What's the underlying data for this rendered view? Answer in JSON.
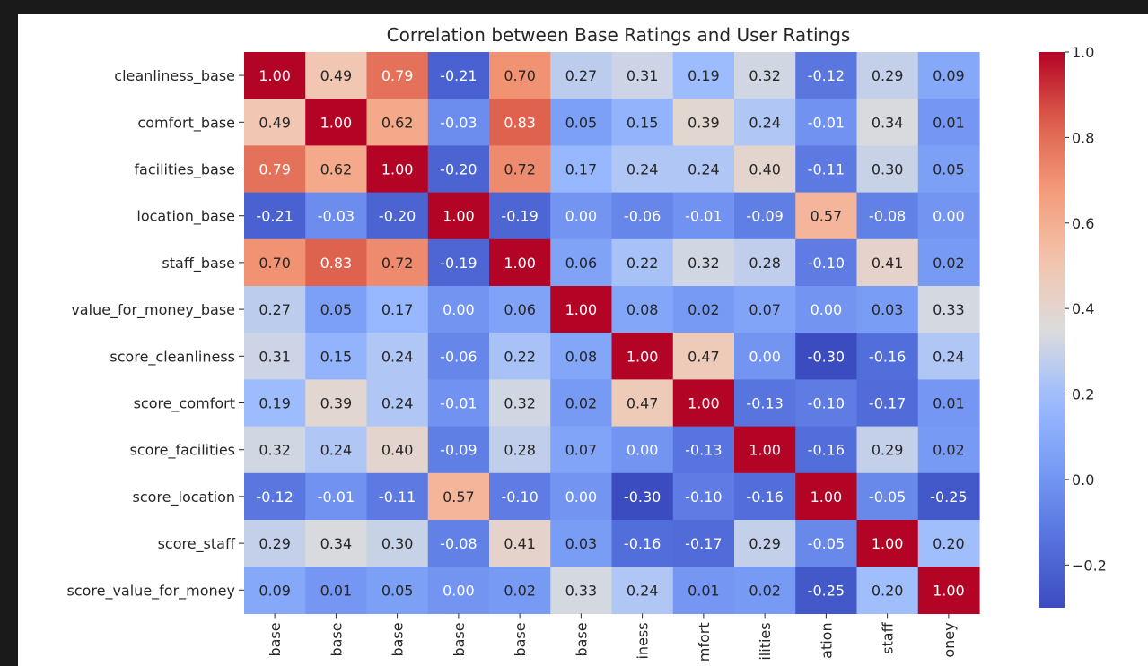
{
  "window": {
    "background": "#1a1a1a"
  },
  "chart_data": {
    "type": "heatmap",
    "title": "Correlation between Base Ratings and User Ratings",
    "row_labels": [
      "cleanliness_base",
      "comfort_base",
      "facilities_base",
      "location_base",
      "staff_base",
      "value_for_money_base",
      "score_cleanliness",
      "score_comfort",
      "score_facilities",
      "score_location",
      "score_staff",
      "score_value_for_money"
    ],
    "col_labels_visible": [
      "base",
      "base",
      "base",
      "base",
      "base",
      "base",
      "iness",
      "mfort",
      "ilities",
      "ation",
      "staff",
      "oney"
    ],
    "values": [
      [
        1.0,
        0.49,
        0.79,
        -0.21,
        0.7,
        0.27,
        0.31,
        0.19,
        0.32,
        -0.12,
        0.29,
        0.09
      ],
      [
        0.49,
        1.0,
        0.62,
        -0.03,
        0.83,
        0.05,
        0.15,
        0.39,
        0.24,
        -0.01,
        0.34,
        0.01
      ],
      [
        0.79,
        0.62,
        1.0,
        -0.2,
        0.72,
        0.17,
        0.24,
        0.24,
        0.4,
        -0.11,
        0.3,
        0.05
      ],
      [
        -0.21,
        -0.03,
        -0.2,
        1.0,
        -0.19,
        -0.0,
        -0.06,
        -0.01,
        -0.09,
        0.57,
        -0.08,
        0.0
      ],
      [
        0.7,
        0.83,
        0.72,
        -0.19,
        1.0,
        0.06,
        0.22,
        0.32,
        0.28,
        -0.1,
        0.41,
        0.02
      ],
      [
        0.27,
        0.05,
        0.17,
        -0.0,
        0.06,
        1.0,
        0.08,
        0.02,
        0.07,
        0.0,
        0.03,
        0.33
      ],
      [
        0.31,
        0.15,
        0.24,
        -0.06,
        0.22,
        0.08,
        1.0,
        0.47,
        0.0,
        -0.3,
        -0.16,
        0.24
      ],
      [
        0.19,
        0.39,
        0.24,
        -0.01,
        0.32,
        0.02,
        0.47,
        1.0,
        -0.13,
        -0.1,
        -0.17,
        0.01
      ],
      [
        0.32,
        0.24,
        0.4,
        -0.09,
        0.28,
        0.07,
        0.0,
        -0.13,
        1.0,
        -0.16,
        0.29,
        0.02
      ],
      [
        -0.12,
        -0.01,
        -0.11,
        0.57,
        -0.1,
        0.0,
        -0.3,
        -0.1,
        -0.16,
        1.0,
        -0.05,
        -0.25
      ],
      [
        0.29,
        0.34,
        0.3,
        -0.08,
        0.41,
        0.03,
        -0.16,
        -0.17,
        0.29,
        -0.05,
        1.0,
        0.2
      ],
      [
        0.09,
        0.01,
        0.05,
        0.0,
        0.02,
        0.33,
        0.24,
        0.01,
        0.02,
        -0.25,
        0.2,
        1.0
      ]
    ],
    "value_format": "2 decimals",
    "colormap": "coolwarm",
    "color_range": [
      -0.3,
      1.0
    ],
    "colorbar": {
      "position": "right",
      "ticks": [
        "1.0",
        "0.8",
        "0.6",
        "0.4",
        "0.2",
        "0.0",
        "−0.2"
      ],
      "tick_values": [
        1.0,
        0.8,
        0.6,
        0.4,
        0.2,
        0.0,
        -0.2
      ]
    },
    "grid": false
  }
}
